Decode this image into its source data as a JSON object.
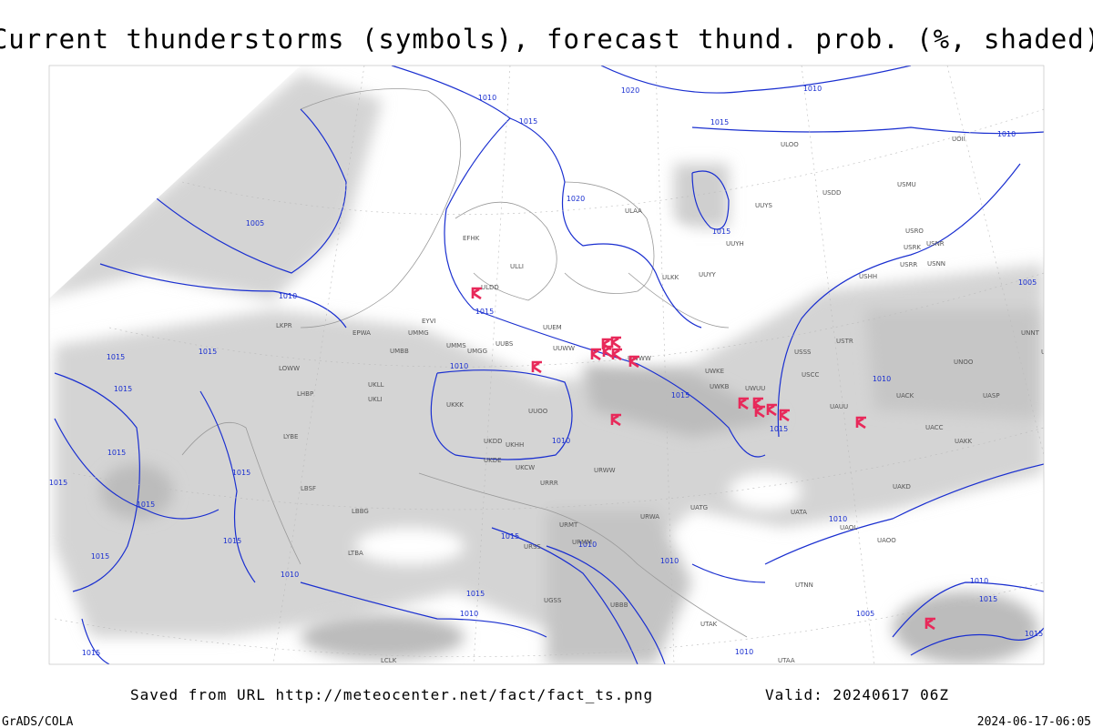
{
  "header": {
    "title": "Current thunderstorms (symbols), forecast thund. prob. (%, shaded)"
  },
  "isobar_labels": [
    "1010",
    "1020",
    "1010",
    "1015",
    "1015",
    "1010",
    "1005",
    "1020",
    "1015",
    "1010",
    "1015",
    "1005",
    "1015",
    "1015",
    "1010",
    "1015",
    "1010",
    "1015",
    "1015",
    "1015",
    "1015",
    "1010",
    "1015",
    "1015",
    "1015",
    "1015",
    "1010",
    "1010",
    "1015",
    "1010",
    "1015",
    "1010",
    "1010",
    "1010",
    "1015",
    "1005",
    "1015",
    "1015",
    "1010"
  ],
  "station_labels": [
    "ULDD",
    "ULLI",
    "EFHK",
    "ULAA",
    "ULKK",
    "UUYY",
    "UUYS",
    "UUYH",
    "ULOO",
    "USDD",
    "USMU",
    "UOII",
    "USRR",
    "USRK",
    "USRO",
    "USNR",
    "USNN",
    "USHH",
    "UUEM",
    "UUWW",
    "UUBS",
    "UMMS",
    "UMGG",
    "UMBB",
    "UMMG",
    "EYVI",
    "EPWA",
    "UKLL",
    "UKLI",
    "UUOO",
    "UKHH",
    "UKKK",
    "UKDD",
    "UKDE",
    "UKCW",
    "URRR",
    "URWW",
    "UWWW",
    "UWKE",
    "UWKB",
    "UWUU",
    "USSS",
    "USCC",
    "USTR",
    "UAUU",
    "UACC",
    "UAKK",
    "UNOO",
    "UNBB",
    "UNNT",
    "UASP",
    "UACK",
    "UAKD",
    "UATG",
    "UATA",
    "UAOL",
    "UAOO",
    "URWA",
    "URMT",
    "URMM",
    "URSS",
    "UGSS",
    "UBBB",
    "UTAK",
    "UTNN",
    "UTAA",
    "LCLK",
    "LTBA",
    "LBSF",
    "LBBG",
    "LYBE",
    "LHBP",
    "LOWW",
    "LKPR"
  ],
  "footer": {
    "source": "Saved from URL http://meteocenter.net/fact/fact_ts.png",
    "valid": "Valid: 20240617 06Z",
    "left": "GrADS/COLA",
    "timestamp": "2024-06-17-06:05"
  }
}
